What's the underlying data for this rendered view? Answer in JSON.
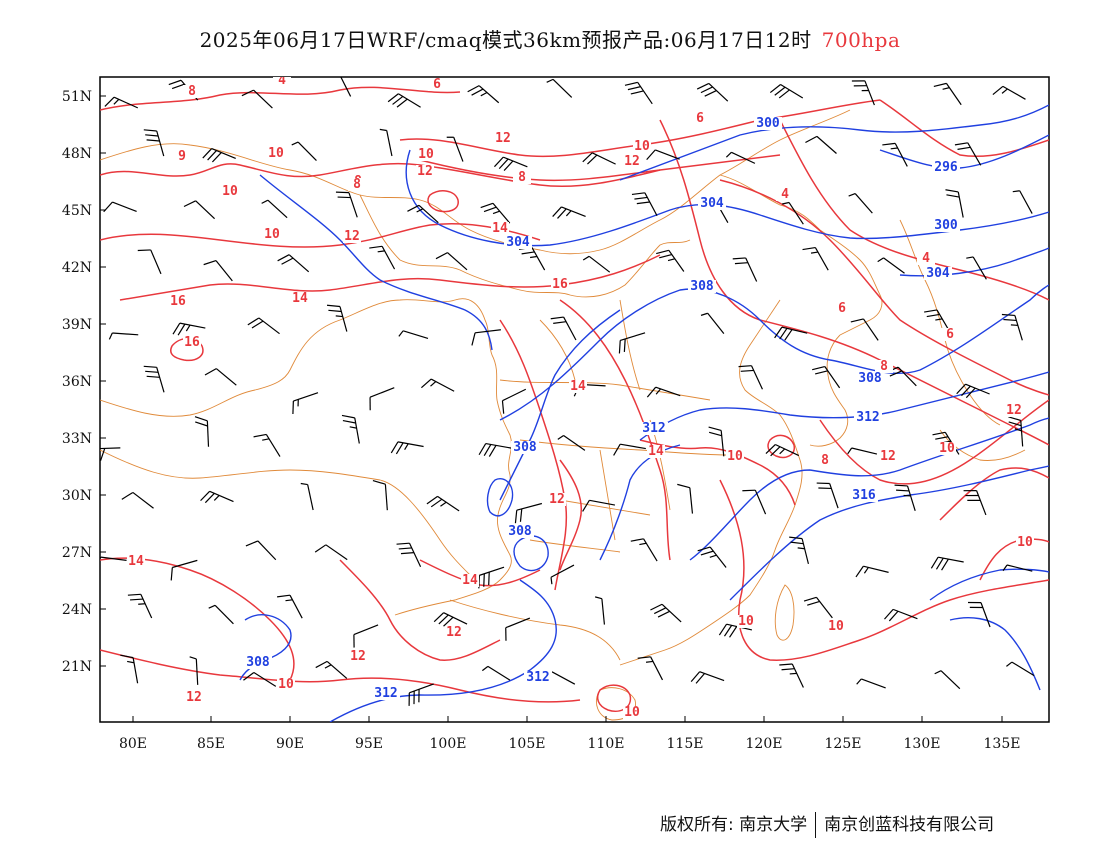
{
  "title": {
    "main": "2025年06月17日WRF/cmaq模式36km预报产品:06月17日12时",
    "level": "700hpa"
  },
  "axes": {
    "lat_labels": [
      "51N",
      "48N",
      "45N",
      "42N",
      "39N",
      "36N",
      "33N",
      "30N",
      "27N",
      "24N",
      "21N"
    ],
    "lon_labels": [
      "80E",
      "85E",
      "90E",
      "95E",
      "100E",
      "105E",
      "110E",
      "115E",
      "120E",
      "125E",
      "130E",
      "135E"
    ]
  },
  "legend_colors": {
    "temperature_contour": "#e8383d",
    "height_contour": "#2040e0",
    "boundaries": "#e08a3a",
    "wind_barbs": "#000000"
  },
  "temperature_labels": [
    "8",
    "6",
    "4",
    "8",
    "10",
    "12",
    "10",
    "6",
    "4",
    "12",
    "9",
    "10",
    "8",
    "10",
    "12",
    "6",
    "4",
    "12",
    "14",
    "10",
    "16",
    "14",
    "16",
    "8",
    "16",
    "14",
    "6",
    "8",
    "14",
    "12",
    "10",
    "8",
    "10",
    "14",
    "12",
    "12",
    "10",
    "14",
    "12",
    "12",
    "12",
    "10",
    "10",
    "10",
    "10"
  ],
  "height_labels": [
    "300",
    "296",
    "304",
    "304",
    "300",
    "304",
    "308",
    "308",
    "312",
    "312",
    "316",
    "308",
    "308",
    "308",
    "312",
    "312"
  ],
  "copyright": {
    "left": "版权所有: 南京大学",
    "right": "南京创蓝科技有限公司"
  }
}
